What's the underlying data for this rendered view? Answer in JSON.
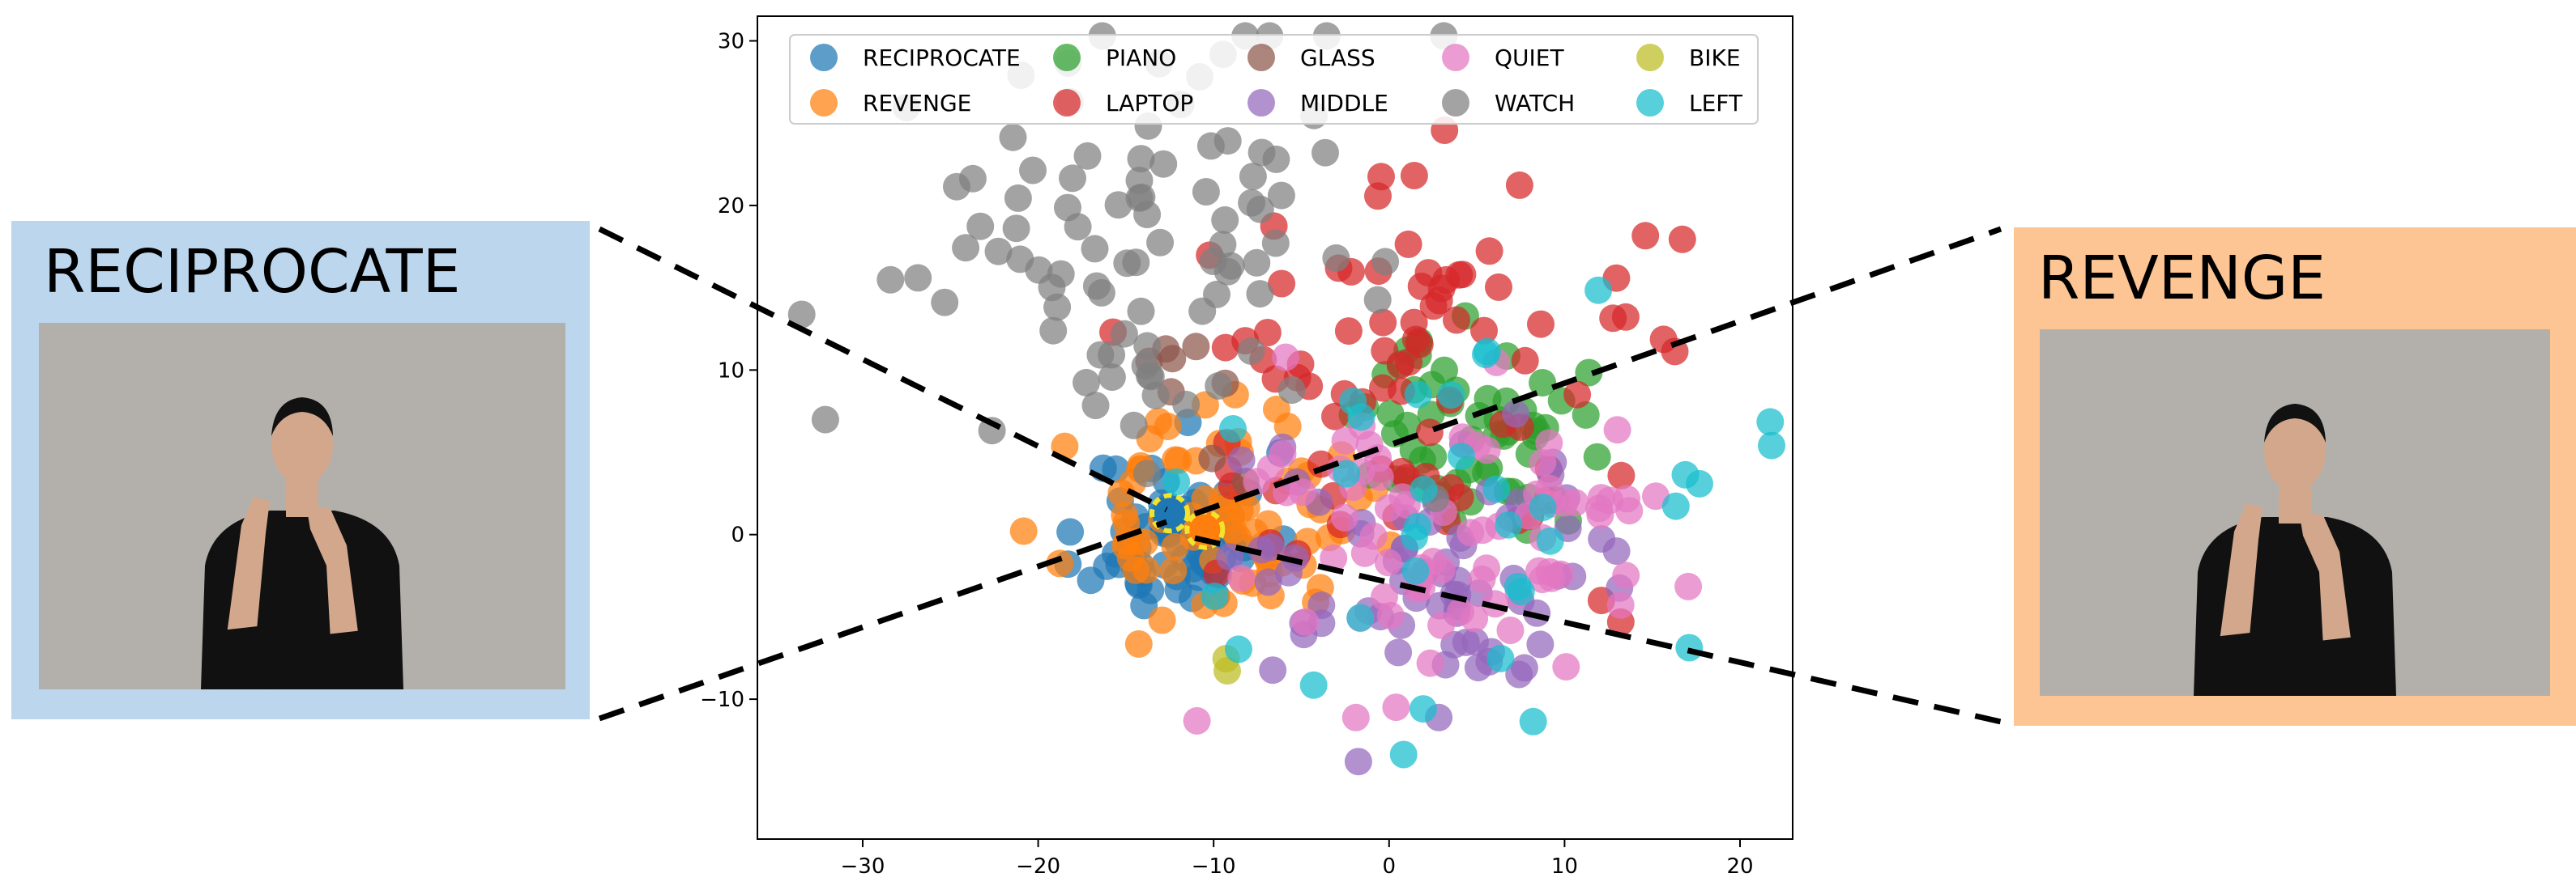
{
  "colors": {
    "left_panel_bg": "#bcd6ee",
    "right_panel_bg": "#fdc594",
    "photo_wall": "#b3b0ab",
    "shirt": "#111111",
    "skin": "#d2a78c",
    "highlight_ring": "#f3e42a"
  },
  "panels": {
    "left": {
      "label": "RECIPROCATE",
      "photo_icon": "signer-photo-icon"
    },
    "right": {
      "label": "REVENGE",
      "photo_icon": "signer-photo-icon"
    }
  },
  "chart_data": {
    "type": "scatter",
    "title": "",
    "xlabel": "",
    "ylabel": "",
    "xlim": [
      -36,
      23
    ],
    "ylim": [
      -18.5,
      31.5
    ],
    "xticks": [
      -30,
      -20,
      -10,
      0,
      10,
      20
    ],
    "yticks": [
      -10,
      0,
      10,
      20,
      30
    ],
    "grid": false,
    "legend": {
      "placement": "top",
      "columns": 5
    },
    "series": [
      {
        "name": "RECIPROCATE",
        "color": "#1f77b4",
        "center": [
          -12,
          0
        ],
        "spread": [
          2.5,
          2.5
        ],
        "count": 70,
        "seed": 11
      },
      {
        "name": "REVENGE",
        "color": "#ff7f0e",
        "center": [
          -10,
          1
        ],
        "spread": [
          4,
          3
        ],
        "count": 75,
        "seed": 23
      },
      {
        "name": "PIANO",
        "color": "#2ca02c",
        "center": [
          5,
          6
        ],
        "spread": [
          3,
          3
        ],
        "count": 60,
        "seed": 37
      },
      {
        "name": "LAPTOP",
        "color": "#d62728",
        "center": [
          3,
          10
        ],
        "spread": [
          8,
          6
        ],
        "count": 85,
        "seed": 41
      },
      {
        "name": "GLASS",
        "color": "#8c564b",
        "center": [
          -11,
          9
        ],
        "spread": [
          2,
          4
        ],
        "count": 8,
        "seed": 53
      },
      {
        "name": "MIDDLE",
        "color": "#9467bd",
        "center": [
          2,
          -2
        ],
        "spread": [
          6,
          5
        ],
        "count": 70,
        "seed": 61
      },
      {
        "name": "QUIET",
        "color": "#e377c2",
        "center": [
          4,
          -1
        ],
        "spread": [
          7,
          5
        ],
        "count": 80,
        "seed": 71
      },
      {
        "name": "WATCH",
        "color": "#7f7f7f",
        "center": [
          -14,
          17
        ],
        "spread": [
          7,
          7
        ],
        "count": 95,
        "seed": 83
      },
      {
        "name": "BIKE",
        "color": "#bcbd22",
        "center": [
          -10,
          -7.5
        ],
        "spread": [
          0.5,
          0.4
        ],
        "count": 2,
        "seed": 97
      },
      {
        "name": "LEFT",
        "color": "#17becf",
        "center": [
          5,
          1
        ],
        "spread": [
          8,
          7
        ],
        "count": 35,
        "seed": 103
      }
    ],
    "highlighted": [
      {
        "series": "RECIPROCATE",
        "x": -12.5,
        "y": 1.3
      },
      {
        "series": "REVENGE",
        "x": -10.5,
        "y": 0.3
      }
    ]
  }
}
